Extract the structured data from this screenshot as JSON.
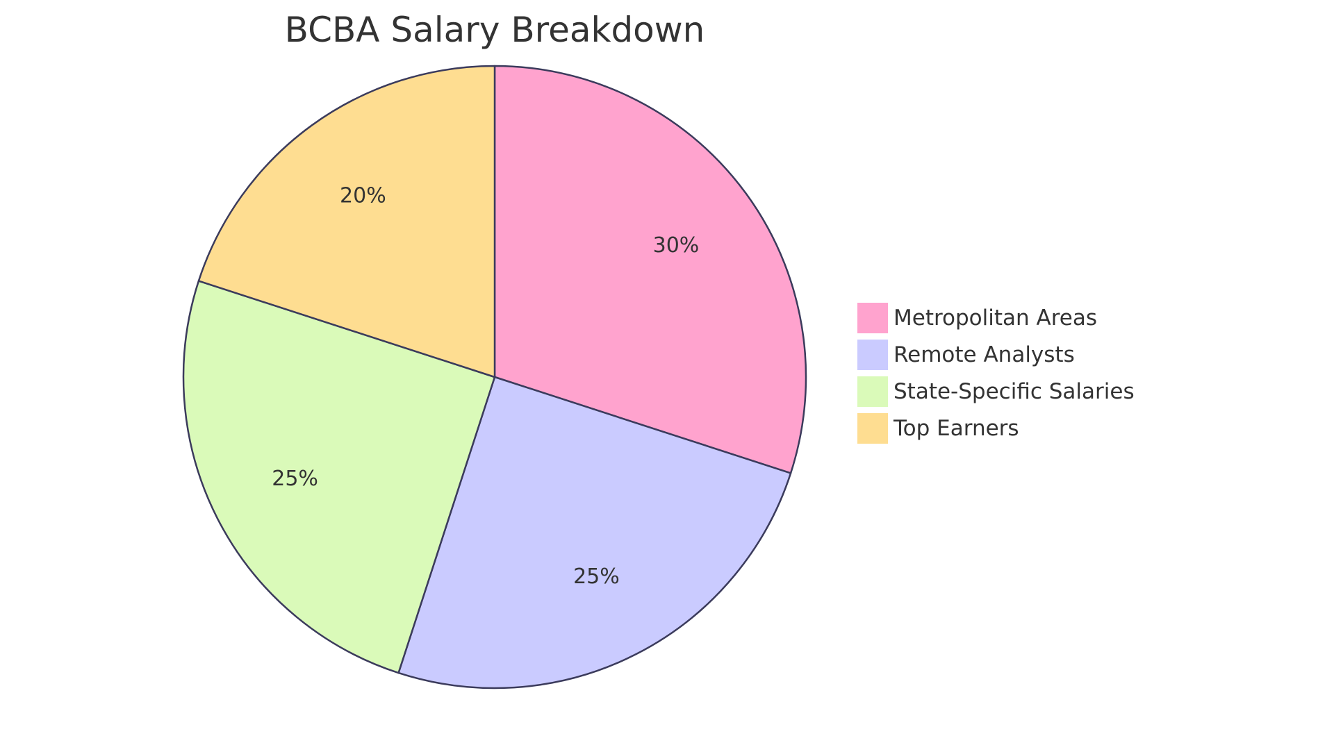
{
  "chart_data": {
    "type": "pie",
    "title": "BCBA Salary Breakdown",
    "slices": [
      {
        "label": "Metropolitan Areas",
        "value": 30,
        "display": "30%",
        "color": "#FFA3CE"
      },
      {
        "label": "Remote Analysts",
        "value": 25,
        "display": "25%",
        "color": "#CACBFF"
      },
      {
        "label": "State-Specific Salaries",
        "value": 25,
        "display": "25%",
        "color": "#DAFAB9"
      },
      {
        "label": "Top Earners",
        "value": 20,
        "display": "20%",
        "color": "#FEDD91"
      }
    ],
    "stroke_color": "#3B3B5C",
    "start_angle": "12 o'clock",
    "direction": "clockwise",
    "legend_position": "right"
  }
}
